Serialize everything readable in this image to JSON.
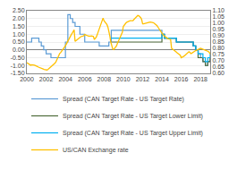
{
  "chart_data": {
    "type": "line",
    "xlim": [
      2000,
      2019
    ],
    "xticks": [
      2000,
      2002,
      2004,
      2006,
      2008,
      2010,
      2012,
      2014,
      2016,
      2018
    ],
    "ylim": [
      -1.5,
      2.5
    ],
    "yticks": [
      {
        "value": -1.5,
        "label": "-1.50"
      },
      {
        "value": -1.0,
        "label": "-1.00"
      },
      {
        "value": -0.5,
        "label": "-0.50"
      },
      {
        "value": 0.0,
        "label": "0.00"
      },
      {
        "value": 0.5,
        "label": "0.50"
      },
      {
        "value": 1.0,
        "label": "1.00"
      },
      {
        "value": 1.5,
        "label": "1.50"
      },
      {
        "value": 2.0,
        "label": "2.00"
      },
      {
        "value": 2.5,
        "label": "2.50"
      }
    ],
    "y2lim": [
      0.6,
      1.1
    ],
    "y2ticks": [
      {
        "value": 0.6,
        "label": "0.60"
      },
      {
        "value": 0.65,
        "label": "0.65"
      },
      {
        "value": 0.7,
        "label": "0.70"
      },
      {
        "value": 0.75,
        "label": "0.75"
      },
      {
        "value": 0.8,
        "label": "0.80"
      },
      {
        "value": 0.85,
        "label": "0.85"
      },
      {
        "value": 0.9,
        "label": "0.90"
      },
      {
        "value": 0.95,
        "label": "0.95"
      },
      {
        "value": 1.0,
        "label": "1.00"
      },
      {
        "value": 1.05,
        "label": "1.05"
      },
      {
        "value": 1.1,
        "label": "1.10"
      }
    ],
    "grid": true,
    "legend": "bottom",
    "series": [
      {
        "name": "Spread (CAN Target Rate - US Target Rate)",
        "color": "#5B9BD5",
        "type": "step",
        "x": [
          2000.0,
          2000.5,
          2001.0,
          2001.25,
          2001.5,
          2001.75,
          2002.0,
          2002.5,
          2003.0,
          2003.5,
          2004.0,
          2004.25,
          2004.5,
          2004.75,
          2005.0,
          2005.5,
          2006.0,
          2006.5,
          2007.0,
          2007.5,
          2008.0,
          2008.5,
          2008.75,
          2009.0,
          2009.5,
          2010.0,
          2010.5,
          2011.0,
          2011.5,
          2012.0,
          2012.5,
          2013.0,
          2013.5,
          2014.0,
          2014.25,
          2014.5,
          2015.0,
          2015.5,
          2016.0,
          2016.5,
          2017.0,
          2017.25,
          2017.5,
          2017.75,
          2018.0,
          2018.25,
          2018.5,
          2018.75,
          2019.0
        ],
        "values": [
          0.5,
          0.75,
          0.75,
          0.5,
          0.25,
          0.0,
          -0.25,
          -0.5,
          -0.5,
          -0.5,
          0.5,
          2.25,
          2.0,
          1.75,
          1.5,
          1.0,
          0.5,
          0.5,
          0.5,
          0.25,
          0.25,
          0.5,
          1.25,
          1.25,
          1.25,
          1.25,
          1.25,
          1.25,
          1.25,
          1.25,
          1.25,
          1.25,
          1.25,
          1.0,
          0.75,
          0.75,
          0.75,
          0.5,
          0.5,
          0.5,
          0.5,
          0.25,
          0.0,
          -0.25,
          -0.5,
          -0.75,
          -1.0,
          -0.75,
          -0.5
        ]
      },
      {
        "name": "Spread (CAN Target Rate - US Target Lower Limit)",
        "color": "#4E6B3A",
        "type": "step",
        "x": [
          2008.75,
          2009.0,
          2009.5,
          2010.0,
          2010.5,
          2011.0,
          2011.5,
          2012.0,
          2012.5,
          2013.0,
          2013.5,
          2014.0,
          2014.25,
          2015.0,
          2015.5,
          2016.0,
          2016.5,
          2017.0,
          2017.25,
          2017.5,
          2017.75,
          2018.0,
          2018.25,
          2018.5,
          2018.75,
          2019.0
        ],
        "values": [
          0.5,
          0.5,
          0.5,
          0.5,
          0.5,
          0.5,
          0.5,
          0.5,
          0.5,
          0.5,
          0.5,
          1.0,
          0.75,
          0.75,
          0.5,
          0.5,
          0.5,
          0.5,
          0.25,
          0.0,
          -0.5,
          -0.5,
          -0.75,
          -1.0,
          -0.75,
          -0.5
        ]
      },
      {
        "name": "Spread (CAN Target Rate - US Target Upper Limit)",
        "color": "#00B0F0",
        "type": "step",
        "x": [
          2008.75,
          2009.0,
          2009.5,
          2010.0,
          2010.5,
          2011.0,
          2011.5,
          2012.0,
          2012.5,
          2013.0,
          2013.5,
          2014.0,
          2014.25,
          2015.0,
          2015.5,
          2016.0,
          2016.5,
          2017.0,
          2017.25,
          2017.5,
          2017.75,
          2018.0,
          2018.25,
          2018.5,
          2018.75,
          2019.0
        ],
        "values": [
          0.75,
          0.75,
          0.75,
          0.75,
          0.75,
          0.75,
          0.75,
          0.75,
          0.75,
          0.75,
          0.75,
          1.0,
          0.75,
          0.75,
          0.5,
          0.5,
          0.5,
          0.5,
          0.25,
          0.0,
          -0.25,
          -0.25,
          -0.5,
          -0.75,
          -0.5,
          -0.25
        ]
      },
      {
        "name": "US/CAN Exchange rate",
        "color": "#FFC000",
        "type": "line",
        "axis": "y2",
        "x": [
          2000.0,
          2000.1,
          2000.2,
          2000.3,
          2000.4,
          2000.5,
          2000.6,
          2000.7,
          2000.8,
          2000.9,
          2001.0,
          2001.1,
          2001.2,
          2001.3,
          2001.4,
          2001.5,
          2001.6,
          2001.7,
          2001.8,
          2001.9,
          2002.0,
          2002.1,
          2002.2,
          2002.3,
          2002.4,
          2002.5,
          2002.6,
          2002.7,
          2002.8,
          2002.9,
          2003.0,
          2003.1,
          2003.2,
          2003.3,
          2003.4,
          2003.5,
          2003.6,
          2003.7,
          2003.8,
          2003.9,
          2004.0,
          2004.1,
          2004.2,
          2004.3,
          2004.4,
          2004.5,
          2004.6,
          2004.7,
          2004.8,
          2004.9,
          2005.0,
          2005.1,
          2005.2,
          2005.3,
          2005.4,
          2005.5,
          2005.6,
          2005.7,
          2005.8,
          2005.9,
          2006.0,
          2006.1,
          2006.2,
          2006.3,
          2006.4,
          2006.5,
          2006.6,
          2006.7,
          2006.8,
          2006.9,
          2007.0,
          2007.1,
          2007.2,
          2007.3,
          2007.4,
          2007.5,
          2007.6,
          2007.7,
          2007.8,
          2007.9,
          2008.0,
          2008.1,
          2008.2,
          2008.3,
          2008.4,
          2008.5,
          2008.6,
          2008.7,
          2008.8,
          2008.9,
          2009.0,
          2009.1,
          2009.2,
          2009.3,
          2009.4,
          2009.5,
          2009.6,
          2009.7,
          2009.8,
          2009.9,
          2010.0,
          2010.1,
          2010.2,
          2010.3,
          2010.4,
          2010.5,
          2010.6,
          2010.7,
          2010.8,
          2010.9,
          2011.0,
          2011.1,
          2011.2,
          2011.3,
          2011.4,
          2011.5,
          2011.6,
          2011.7,
          2011.8,
          2011.9,
          2012.0,
          2012.1,
          2012.2,
          2012.3,
          2012.4,
          2012.5,
          2012.6,
          2012.7,
          2012.8,
          2012.9,
          2013.0,
          2013.1,
          2013.2,
          2013.3,
          2013.4,
          2013.5,
          2013.6,
          2013.7,
          2013.8,
          2013.9,
          2014.0,
          2014.1,
          2014.2,
          2014.3,
          2014.4,
          2014.5,
          2014.6,
          2014.7,
          2014.8,
          2014.9,
          2015.0,
          2015.1,
          2015.2,
          2015.3,
          2015.4,
          2015.5,
          2015.6,
          2015.7,
          2015.8,
          2015.9,
          2016.0,
          2016.1,
          2016.2,
          2016.3,
          2016.4,
          2016.5,
          2016.6,
          2016.7,
          2016.8,
          2016.9,
          2017.0,
          2017.1,
          2017.2,
          2017.3,
          2017.4,
          2017.5,
          2017.6,
          2017.7,
          2017.8,
          2017.9,
          2018.0,
          2018.1,
          2018.2,
          2018.3,
          2018.4,
          2018.5,
          2018.6,
          2018.7,
          2018.8,
          2018.9,
          2019.0
        ],
        "values": [
          0.685,
          0.68,
          0.672,
          0.668,
          0.665,
          0.668,
          0.67,
          0.667,
          0.665,
          0.663,
          0.66,
          0.655,
          0.65,
          0.648,
          0.645,
          0.643,
          0.638,
          0.635,
          0.632,
          0.63,
          0.625,
          0.627,
          0.632,
          0.638,
          0.645,
          0.652,
          0.658,
          0.663,
          0.668,
          0.68,
          0.69,
          0.71,
          0.73,
          0.745,
          0.758,
          0.765,
          0.775,
          0.785,
          0.795,
          0.805,
          0.82,
          0.835,
          0.852,
          0.868,
          0.88,
          0.893,
          0.908,
          0.92,
          0.937,
          0.948,
          0.855,
          0.862,
          0.87,
          0.878,
          0.885,
          0.89,
          0.893,
          0.895,
          0.897,
          0.9,
          0.91,
          0.905,
          0.902,
          0.9,
          0.898,
          0.896,
          0.897,
          0.898,
          0.897,
          0.895,
          0.87,
          0.878,
          0.89,
          0.91,
          0.935,
          0.96,
          0.985,
          1.01,
          1.03,
          1.042,
          1.02,
          1.01,
          1.0,
          0.99,
          0.97,
          0.94,
          0.9,
          0.85,
          0.81,
          0.795,
          0.79,
          0.798,
          0.808,
          0.82,
          0.842,
          0.86,
          0.878,
          0.898,
          0.915,
          0.928,
          0.975,
          0.988,
          0.998,
          1.005,
          1.01,
          1.015,
          1.018,
          1.02,
          1.02,
          1.02,
          1.02,
          1.03,
          1.04,
          1.05,
          1.058,
          1.062,
          1.06,
          1.055,
          1.045,
          1.03,
          0.995,
          0.995,
          0.998,
          1.0,
          1.003,
          1.005,
          1.007,
          1.008,
          1.01,
          1.01,
          1.008,
          1.005,
          1.0,
          0.995,
          0.99,
          0.98,
          0.968,
          0.955,
          0.942,
          0.932,
          0.92,
          0.91,
          0.902,
          0.895,
          0.888,
          0.882,
          0.878,
          0.875,
          0.872,
          0.87,
          0.8,
          0.795,
          0.79,
          0.785,
          0.778,
          0.77,
          0.762,
          0.755,
          0.75,
          0.745,
          0.725,
          0.728,
          0.732,
          0.738,
          0.745,
          0.752,
          0.76,
          0.768,
          0.773,
          0.768,
          0.758,
          0.762,
          0.768,
          0.772,
          0.778,
          0.782,
          0.785,
          0.788,
          0.792,
          0.798,
          0.8,
          0.798,
          0.795,
          0.793,
          0.79,
          0.788,
          0.785,
          0.78,
          0.775,
          0.768,
          0.755
        ]
      }
    ]
  }
}
